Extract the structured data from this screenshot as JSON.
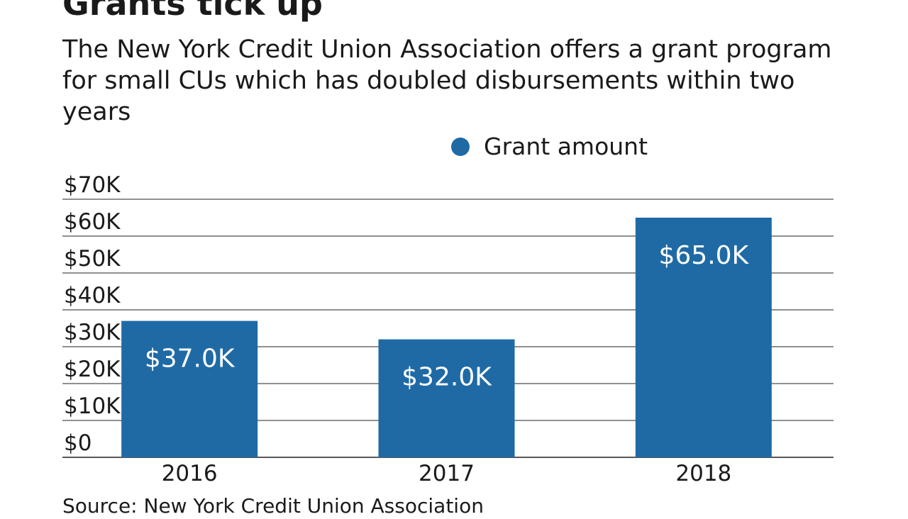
{
  "header": {
    "title": "Grants tick up",
    "subtitle": "The New York Credit Union Association offers a grant program for small CUs which has doubled disbursements within two years"
  },
  "footer": {
    "source": "Source: New York Credit Union Association"
  },
  "colors": {
    "bar": "#1f6aa5",
    "grid": "#222222",
    "text": "#1a1a1a",
    "bar_label": "#ffffff"
  },
  "chart_data": {
    "type": "bar",
    "title": "Grants tick up",
    "subtitle": "The New York Credit Union Association offers a grant program for small CUs which has doubled disbursements within two years",
    "categories": [
      "2016",
      "2017",
      "2018"
    ],
    "series": [
      {
        "name": "Grant amount",
        "values": [
          37000,
          32000,
          65000
        ],
        "data_labels": [
          "$37.0K",
          "$32.0K",
          "$65.0K"
        ]
      }
    ],
    "y_ticks": [
      {
        "value": 0,
        "label": "$0"
      },
      {
        "value": 10000,
        "label": "$10K"
      },
      {
        "value": 20000,
        "label": "$20K"
      },
      {
        "value": 30000,
        "label": "$30K"
      },
      {
        "value": 40000,
        "label": "$40K"
      },
      {
        "value": 50000,
        "label": "$50K"
      },
      {
        "value": 60000,
        "label": "$60K"
      },
      {
        "value": 70000,
        "label": "$70K"
      }
    ],
    "ylim": [
      0,
      70000
    ],
    "xlabel": "",
    "ylabel": "",
    "grid": true,
    "legend": "top-center"
  }
}
